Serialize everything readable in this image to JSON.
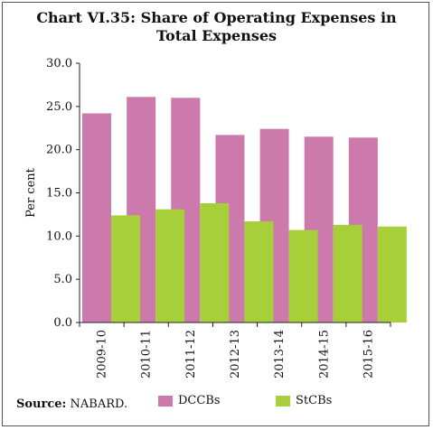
{
  "chart_data": {
    "type": "bar",
    "title_line1": "Chart VI.35: Share of Operating Expenses in",
    "title_line2": "Total Expenses",
    "ylabel": "Per cent",
    "xlabel": "",
    "ylim": [
      0,
      30
    ],
    "yticks": [
      "0.0",
      "5.0",
      "10.0",
      "15.0",
      "20.0",
      "25.0",
      "30.0"
    ],
    "categories": [
      "2009-10",
      "2010-11",
      "2011-12",
      "2012-13",
      "2013-14",
      "2014-15",
      "2015-16"
    ],
    "series": [
      {
        "name": "DCCBs",
        "color": "#cc7aab",
        "values": [
          24.2,
          26.1,
          26.0,
          21.7,
          22.4,
          21.5,
          21.4
        ]
      },
      {
        "name": "StCBs",
        "color": "#a6cf3a",
        "values": [
          12.4,
          13.1,
          13.8,
          11.7,
          10.7,
          11.3,
          11.1
        ]
      }
    ],
    "legend_position": "bottom",
    "grid": false
  },
  "source_label": "Source:",
  "source_text": "NABARD."
}
